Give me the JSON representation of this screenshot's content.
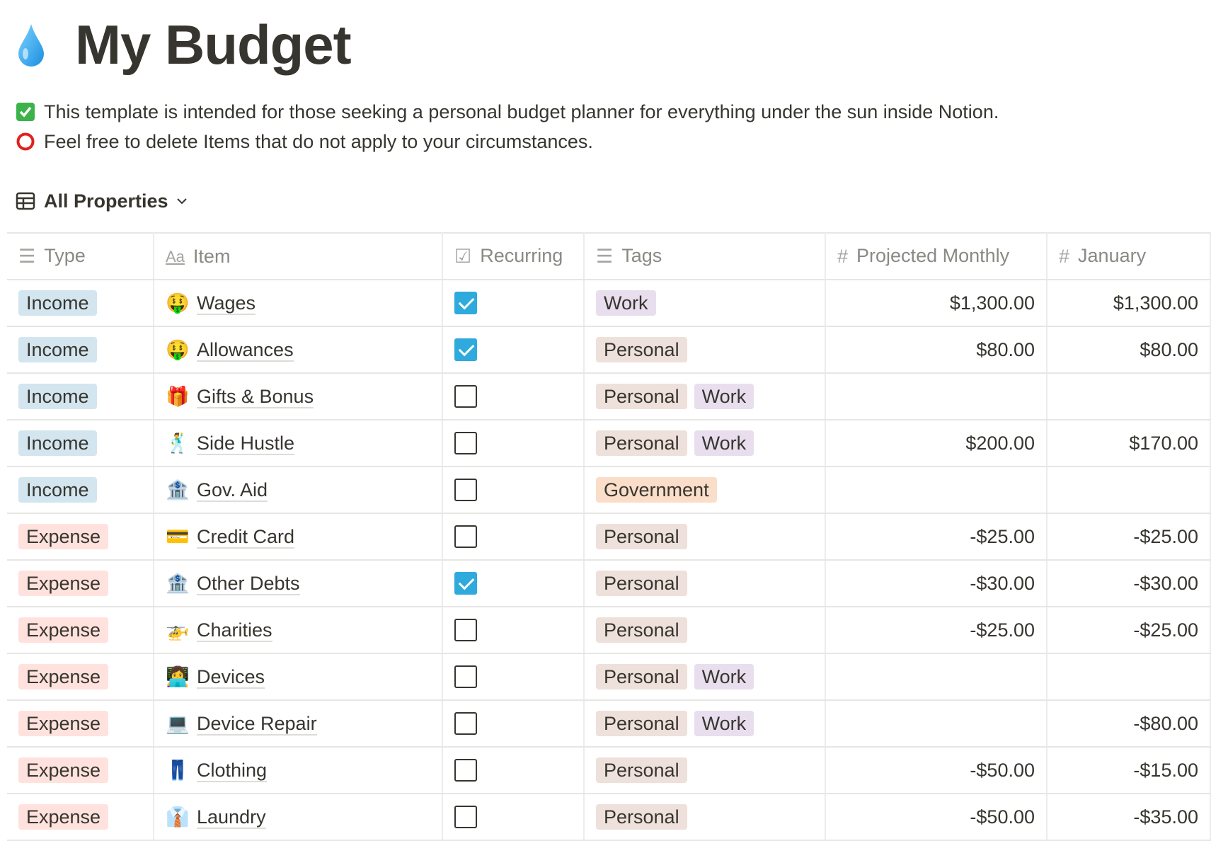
{
  "page": {
    "icon": "droplet-emoji",
    "title": "My Budget"
  },
  "description": [
    {
      "icon": "check-mark-button-emoji",
      "text": "This template is intended for those seeking a personal budget planner for everything under the sun inside Notion."
    },
    {
      "icon": "hollow-red-circle-emoji",
      "text": "Feel free to delete Items that do not apply to your circumstances."
    }
  ],
  "view": {
    "label": "All Properties",
    "icon": "table-icon"
  },
  "columns": {
    "type": "Type",
    "item": "Item",
    "recurring": "Recurring",
    "tags": "Tags",
    "projected": "Projected Monthly",
    "january": "January"
  },
  "colors": {
    "Income": "#d3e5ef",
    "Expense": "#ffe2dd",
    "Work": "#e8deee",
    "Personal": "#eee0da",
    "Government": "#fadec9",
    "checkbox": "#2eaadc"
  },
  "rows": [
    {
      "type": "Income",
      "emoji": "🤑",
      "item": "Wages",
      "recurring": true,
      "tags": [
        "Work"
      ],
      "projected": "$1,300.00",
      "january": "$1,300.00"
    },
    {
      "type": "Income",
      "emoji": "🤑",
      "item": "Allowances",
      "recurring": true,
      "tags": [
        "Personal"
      ],
      "projected": "$80.00",
      "january": "$80.00"
    },
    {
      "type": "Income",
      "emoji": "🎁",
      "item": "Gifts & Bonus",
      "recurring": false,
      "tags": [
        "Personal",
        "Work"
      ],
      "projected": "",
      "january": ""
    },
    {
      "type": "Income",
      "emoji": "🕺",
      "item": "Side Hustle",
      "recurring": false,
      "tags": [
        "Personal",
        "Work"
      ],
      "projected": "$200.00",
      "january": "$170.00"
    },
    {
      "type": "Income",
      "emoji": "🏦",
      "item": "Gov. Aid",
      "recurring": false,
      "tags": [
        "Government"
      ],
      "projected": "",
      "january": ""
    },
    {
      "type": "Expense",
      "emoji": "💳",
      "item": "Credit Card",
      "recurring": false,
      "tags": [
        "Personal"
      ],
      "projected": "-$25.00",
      "january": "-$25.00"
    },
    {
      "type": "Expense",
      "emoji": "🏦",
      "item": "Other Debts",
      "recurring": true,
      "tags": [
        "Personal"
      ],
      "projected": "-$30.00",
      "january": "-$30.00"
    },
    {
      "type": "Expense",
      "emoji": "🚁",
      "item": "Charities",
      "recurring": false,
      "tags": [
        "Personal"
      ],
      "projected": "-$25.00",
      "january": "-$25.00"
    },
    {
      "type": "Expense",
      "emoji": "👩‍💻",
      "item": "Devices",
      "recurring": false,
      "tags": [
        "Personal",
        "Work"
      ],
      "projected": "",
      "january": ""
    },
    {
      "type": "Expense",
      "emoji": "💻",
      "item": "Device Repair",
      "recurring": false,
      "tags": [
        "Personal",
        "Work"
      ],
      "projected": "",
      "january": "-$80.00"
    },
    {
      "type": "Expense",
      "emoji": "👖",
      "item": "Clothing",
      "recurring": false,
      "tags": [
        "Personal"
      ],
      "projected": "-$50.00",
      "january": "-$15.00"
    },
    {
      "type": "Expense",
      "emoji": "👔",
      "item": "Laundry",
      "recurring": false,
      "tags": [
        "Personal"
      ],
      "projected": "-$50.00",
      "january": "-$35.00"
    }
  ]
}
